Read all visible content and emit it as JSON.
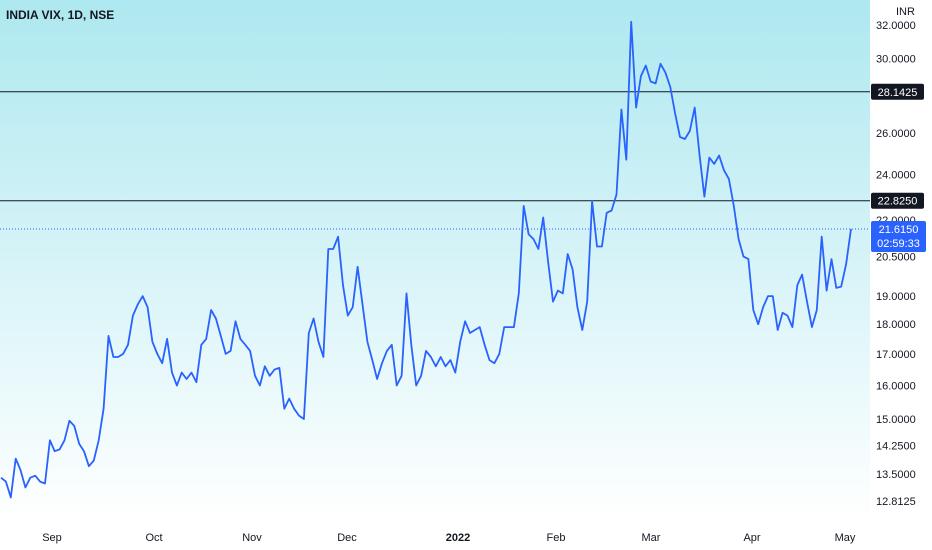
{
  "header": {
    "symbol": "INDIA VIX, 1D, NSE",
    "currency": "INR"
  },
  "chart_data": {
    "type": "line",
    "title": "INDIA VIX, 1D, NSE",
    "xlabel": "",
    "ylabel": "INR",
    "yscale": "log",
    "ylim": [
      12.4,
      33.2
    ],
    "y_ticks": [
      "32.0000",
      "30.0000",
      "28.1425",
      "26.0000",
      "24.0000",
      "22.8250",
      "22.0000",
      "21.6150",
      "20.5000",
      "19.0000",
      "18.0000",
      "17.0000",
      "16.0000",
      "15.0000",
      "14.2500",
      "13.5000",
      "12.8125"
    ],
    "x_ticks": [
      "Sep",
      "Oct",
      "Nov",
      "Dec",
      "2022",
      "Feb",
      "Mar",
      "Apr",
      "May"
    ],
    "x_ticks_bold": [
      "2022"
    ],
    "horizontal_lines": [
      {
        "value": 28.1425,
        "label": "28.1425"
      },
      {
        "value": 22.825,
        "label": "22.8250"
      }
    ],
    "last_price": {
      "value": 21.615,
      "label": "21.6150",
      "countdown": "02:59:33"
    },
    "series": [
      {
        "color": "#2962ff",
        "values": [
          13.4,
          13.3,
          12.9,
          13.9,
          13.6,
          13.15,
          13.4,
          13.45,
          13.3,
          13.25,
          14.4,
          14.1,
          14.15,
          14.4,
          14.95,
          14.8,
          14.3,
          14.1,
          13.7,
          13.85,
          14.4,
          15.3,
          17.6,
          16.9,
          16.9,
          17.0,
          17.3,
          18.3,
          18.7,
          19.0,
          18.6,
          17.4,
          17.0,
          16.7,
          17.5,
          16.4,
          16.0,
          16.4,
          16.2,
          16.4,
          16.1,
          17.3,
          17.5,
          18.5,
          18.2,
          17.6,
          17.0,
          17.1,
          18.1,
          17.5,
          17.3,
          17.1,
          16.3,
          16.0,
          16.6,
          16.3,
          16.5,
          16.55,
          15.3,
          15.6,
          15.3,
          15.1,
          15.0,
          17.7,
          18.2,
          17.4,
          16.9,
          20.8,
          20.8,
          21.3,
          19.4,
          18.3,
          18.6,
          20.1,
          18.7,
          17.4,
          16.8,
          16.2,
          16.7,
          17.1,
          17.3,
          16.0,
          16.3,
          19.1,
          17.3,
          16.0,
          16.3,
          17.1,
          16.9,
          16.6,
          16.9,
          16.6,
          16.8,
          16.4,
          17.4,
          18.1,
          17.7,
          17.8,
          17.9,
          17.3,
          16.8,
          16.7,
          17.0,
          17.9,
          17.9,
          17.9,
          19.1,
          22.6,
          21.4,
          21.2,
          20.8,
          22.1,
          20.3,
          18.8,
          19.2,
          19.1,
          20.6,
          20.0,
          18.6,
          17.8,
          18.8,
          22.8,
          20.9,
          20.9,
          22.3,
          22.4,
          23.1,
          27.2,
          24.7,
          32.2,
          27.3,
          29.0,
          29.6,
          28.7,
          28.6,
          29.7,
          29.2,
          28.4,
          27.0,
          25.8,
          25.7,
          26.1,
          27.3,
          24.9,
          23.0,
          24.8,
          24.5,
          24.9,
          24.2,
          23.8,
          22.6,
          21.2,
          20.5,
          20.4,
          18.5,
          18.0,
          18.6,
          19.0,
          19.0,
          17.8,
          18.4,
          18.3,
          17.9,
          19.4,
          19.8,
          18.8,
          17.9,
          18.5,
          21.3,
          19.2,
          20.4,
          19.3,
          19.35,
          20.2,
          21.615
        ]
      }
    ]
  },
  "colors": {
    "line": "#2962ff",
    "level_line": "#131722",
    "tag_bg": "#131722",
    "last_tag_bg": "#2962ff",
    "bg_top": "#aee8f0",
    "bg_bottom": "#ffffff",
    "text": "#131722"
  }
}
